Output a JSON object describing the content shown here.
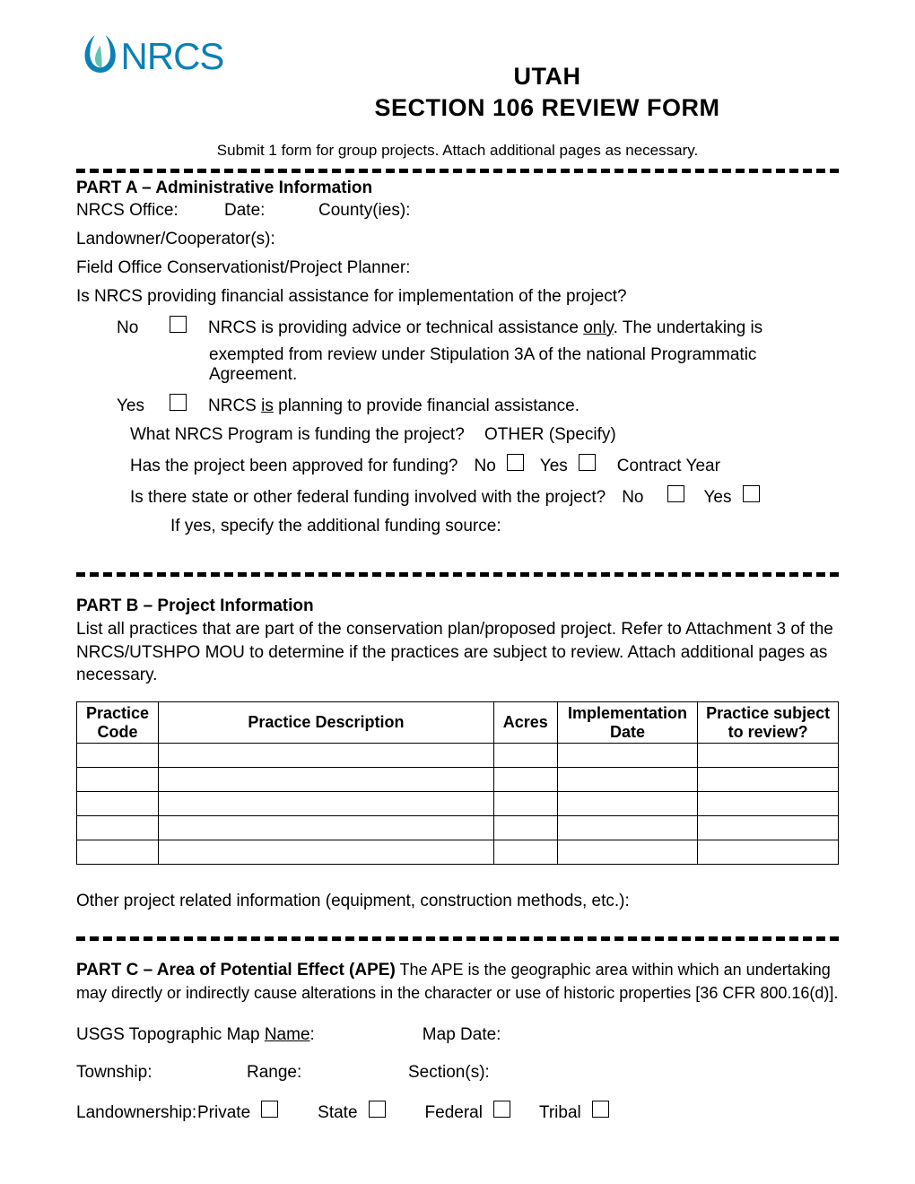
{
  "logo_text": "NRCS",
  "logo_color_primary": "#0b81b5",
  "logo_color_accent": "#5fc5b0",
  "title_line1": "UTAH",
  "title_line2": "SECTION 106 REVIEW FORM",
  "submit_note": "Submit 1 form for group projects.  Attach additional pages as necessary.",
  "partA": {
    "heading": "PART A – Administrative Information",
    "labels": {
      "office": "NRCS Office:",
      "date": "Date:",
      "county": "County(ies):",
      "landowner": "Landowner/Cooperator(s):",
      "planner": "Field Office Conservationist/Project Planner:",
      "financial_q": "Is NRCS providing financial assistance for implementation of the project?",
      "no": "No",
      "no_text1": "NRCS is providing advice or technical assistance ",
      "only": "only",
      "no_text2": ".  The undertaking is",
      "no_text3": "exempted from review under Stipulation 3A of the national Programmatic Agreement.",
      "yes": "Yes",
      "yes_text1": "NRCS ",
      "is": "is",
      "yes_text2": " planning to provide financial assistance.",
      "program_q": "What NRCS Program is funding the project?",
      "other_spec": "OTHER (Specify)",
      "approved_q": "Has the project been approved for funding?",
      "contract_year": "Contract Year",
      "state_funding_q": "Is there state or other federal funding involved with the project?",
      "if_yes": "If yes, specify the additional funding source:"
    }
  },
  "partB": {
    "heading": "PART B – Project Information",
    "intro": "List all practices that are part of the conservation plan/proposed project.  Refer to Attachment 3 of the NRCS/UTSHPO MOU to determine if the practices are subject to review.  Attach additional pages as necessary.",
    "columns": {
      "code": "Practice Code",
      "desc": "Practice Description",
      "acres": "Acres",
      "date": "Implementation Date",
      "review": "Practice subject to review?"
    },
    "row_count": 5,
    "other": "Other project related information (equipment, construction methods, etc.):"
  },
  "partC": {
    "heading": "PART C – Area of Potential Effect (APE)",
    "inline": " The APE is the geographic area within which an undertaking may directly or indirectly cause alterations in the character or use of historic properties [36 CFR 800.16(d)].",
    "labels": {
      "usgs": "USGS Topographic Map ",
      "name": "Name",
      "colon": ":",
      "mapdate": "Map Date:",
      "township": "Township:",
      "range": "Range:",
      "sections": "Section(s):",
      "landownership": "Landownership:",
      "private": "Private",
      "state": "State",
      "federal": "Federal",
      "tribal": "Tribal"
    }
  }
}
